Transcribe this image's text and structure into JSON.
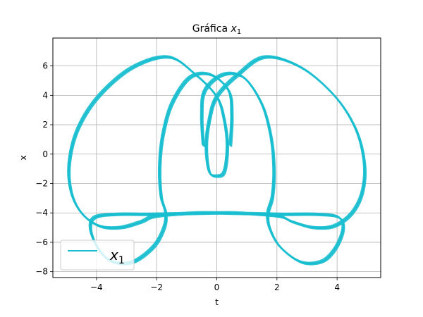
{
  "chart_data": {
    "type": "line",
    "title": "Gráfica",
    "title_var": "x",
    "title_sub": "1",
    "xlabel": "t",
    "ylabel": "x",
    "xlim": [
      -5.45,
      5.45
    ],
    "ylim": [
      -8.4,
      7.9
    ],
    "xticks": [
      -4,
      -2,
      0,
      2,
      4
    ],
    "yticks": [
      -8,
      -6,
      -4,
      -2,
      0,
      2,
      4,
      6
    ],
    "xtick_labels": [
      "−4",
      "−2",
      "0",
      "2",
      "4"
    ],
    "ytick_labels": [
      "−8",
      "−6",
      "−4",
      "−2",
      "0",
      "2",
      "4",
      "6"
    ],
    "grid": true,
    "series": [
      {
        "name": "x",
        "name_sub": "1",
        "color": "#17becf",
        "x": [
          -0.45,
          -0.5,
          -0.4,
          0.2,
          0.9,
          1.5,
          1.8,
          1.9,
          1.85,
          1.7,
          1.75,
          2.1,
          2.8,
          3.5,
          3.95,
          4.2,
          4.05,
          3.3,
          2.2,
          1.0,
          -0.5,
          -1.7,
          -2.2,
          -2.5,
          -3.2,
          -3.9,
          -4.5,
          -4.85,
          -4.9,
          -4.6,
          -3.9,
          -2.8,
          -1.6,
          -0.7,
          0.0,
          0.25,
          0.35,
          0.25,
          0.0,
          -0.25,
          -0.35,
          -0.25,
          0.0,
          0.7,
          1.6,
          2.8,
          3.9,
          4.6,
          4.9,
          4.85,
          4.5,
          3.9,
          3.2,
          2.5,
          2.2,
          1.7,
          0.5,
          -1.0,
          -2.2,
          -3.3,
          -4.05,
          -4.2,
          -3.95,
          -3.5,
          -2.8,
          -2.1,
          -1.75,
          -1.7,
          -1.85,
          -1.9,
          -1.8,
          -1.5,
          -0.9,
          -0.2,
          0.4,
          0.5,
          0.45
        ],
        "y": [
          0.6,
          2.6,
          4.3,
          5.4,
          5.2,
          3.4,
          1.2,
          -1.0,
          -2.9,
          -4.0,
          -5.0,
          -6.3,
          -7.35,
          -7.3,
          -6.4,
          -5.1,
          -4.3,
          -4.1,
          -4.1,
          -4.05,
          -4.0,
          -4.15,
          -4.3,
          -4.6,
          -5.0,
          -4.9,
          -4.0,
          -2.5,
          -0.5,
          1.8,
          4.0,
          5.9,
          6.6,
          5.4,
          3.9,
          2.3,
          0.5,
          -1.2,
          -1.5,
          -1.2,
          0.5,
          2.3,
          3.9,
          5.4,
          6.6,
          5.9,
          4.0,
          1.8,
          -0.5,
          -2.5,
          -4.0,
          -4.9,
          -5.0,
          -4.6,
          -4.3,
          -4.15,
          -4.0,
          -4.05,
          -4.1,
          -4.1,
          -4.3,
          -5.1,
          -6.4,
          -7.3,
          -7.35,
          -6.3,
          -5.0,
          -4.0,
          -2.9,
          -1.0,
          1.2,
          3.4,
          5.2,
          5.4,
          4.3,
          2.6,
          0.6
        ]
      }
    ],
    "legend_position": "lower left"
  }
}
